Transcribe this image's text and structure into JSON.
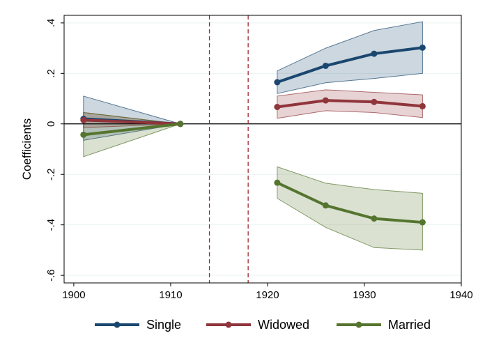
{
  "chart_data": {
    "type": "line",
    "title": "",
    "xlabel": "",
    "ylabel": "Coefficients",
    "xlim": [
      1899,
      1940
    ],
    "ylim": [
      -0.63,
      0.43
    ],
    "xticks": [
      1900,
      1910,
      1920,
      1930,
      1940
    ],
    "xtick_labels": [
      "1900",
      "1910",
      "1920",
      "1930",
      "1940"
    ],
    "yticks": [
      -0.6,
      -0.4,
      -0.2,
      0,
      0.2,
      0.4
    ],
    "ytick_labels": [
      "-.6",
      "-.4",
      "-.2",
      "0",
      ".2",
      ".4"
    ],
    "grid": true,
    "zero_line": true,
    "vlines": [
      1914,
      1918
    ],
    "legend_position": "bottom",
    "series": [
      {
        "name": "Single",
        "color": "#1a476f",
        "segments": [
          {
            "x": [
              1901,
              1911
            ],
            "y": [
              0.02,
              0.0
            ],
            "lo": [
              -0.065,
              0.0
            ],
            "hi": [
              0.11,
              0.0
            ]
          },
          {
            "x": [
              1921,
              1926,
              1931,
              1936
            ],
            "y": [
              0.165,
              0.23,
              0.278,
              0.302
            ],
            "lo": [
              0.12,
              0.163,
              0.18,
              0.2
            ],
            "hi": [
              0.21,
              0.3,
              0.37,
              0.405
            ]
          }
        ]
      },
      {
        "name": "Widowed",
        "color": "#90353b",
        "segments": [
          {
            "x": [
              1901,
              1911
            ],
            "y": [
              0.015,
              0.0
            ],
            "lo": [
              -0.015,
              0.0
            ],
            "hi": [
              0.045,
              0.0
            ]
          },
          {
            "x": [
              1921,
              1926,
              1931,
              1936
            ],
            "y": [
              0.067,
              0.093,
              0.087,
              0.07
            ],
            "lo": [
              0.022,
              0.052,
              0.045,
              0.025
            ],
            "hi": [
              0.11,
              0.135,
              0.125,
              0.115
            ]
          }
        ]
      },
      {
        "name": "Married",
        "color": "#55752f",
        "segments": [
          {
            "x": [
              1901,
              1911
            ],
            "y": [
              -0.043,
              0.0
            ],
            "lo": [
              -0.13,
              0.0
            ],
            "hi": [
              0.045,
              0.0
            ]
          },
          {
            "x": [
              1921,
              1926,
              1931,
              1936
            ],
            "y": [
              -0.233,
              -0.323,
              -0.375,
              -0.39
            ],
            "lo": [
              -0.295,
              -0.41,
              -0.49,
              -0.5
            ],
            "hi": [
              -0.17,
              -0.235,
              -0.26,
              -0.275
            ]
          }
        ]
      }
    ]
  }
}
